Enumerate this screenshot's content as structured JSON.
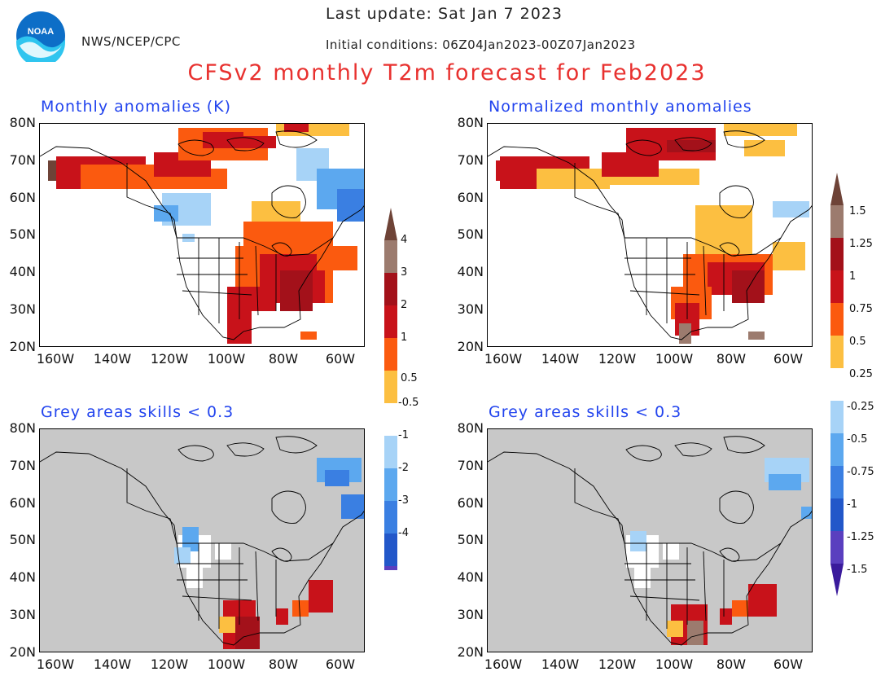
{
  "header": {
    "last_update": "Last update: Sat Jan 7 2023",
    "agency": "NWS/NCEP/CPC",
    "initial_conditions": "Initial conditions: 06Z04Jan2023-00Z07Jan2023",
    "title": "CFSv2 monthly T2m forecast for Feb2023",
    "logo_text": "NOAA"
  },
  "panels": {
    "top_left_title": "Monthly anomalies (K)",
    "top_right_title": "Normalized monthly anomalies",
    "bottom_left_title": "Grey areas skills < 0.3",
    "bottom_right_title": "Grey areas skills < 0.3"
  },
  "axes": {
    "lat_labels": [
      "80N",
      "70N",
      "60N",
      "50N",
      "40N",
      "30N",
      "20N"
    ],
    "lon_labels": [
      "160W",
      "140W",
      "120W",
      "100W",
      "80W",
      "60W"
    ]
  },
  "colorbar_left": {
    "labels": [
      "4",
      "3",
      "2",
      "1",
      "0.5",
      "-0.5",
      "-1",
      "-2",
      "-3",
      "-4"
    ]
  },
  "colorbar_right": {
    "labels": [
      "1.5",
      "1.25",
      "1",
      "0.75",
      "0.5",
      "0.25",
      "-0.25",
      "-0.5",
      "-0.75",
      "-1",
      "-1.25",
      "-1.5"
    ]
  },
  "colors": {
    "title_red": "#e8312f",
    "panel_title_blue": "#2244ee",
    "skill_grey": "#c8c8c8",
    "warm": [
      "#fcbf41",
      "#fb5a0f",
      "#c8121a",
      "#a3111a",
      "#9c7b6e",
      "#6e4337"
    ],
    "cold": [
      "#a7d3f7",
      "#5ca8ef",
      "#3a7fe2",
      "#2257c9",
      "#5a3fbf",
      "#3a1b9c"
    ]
  }
}
